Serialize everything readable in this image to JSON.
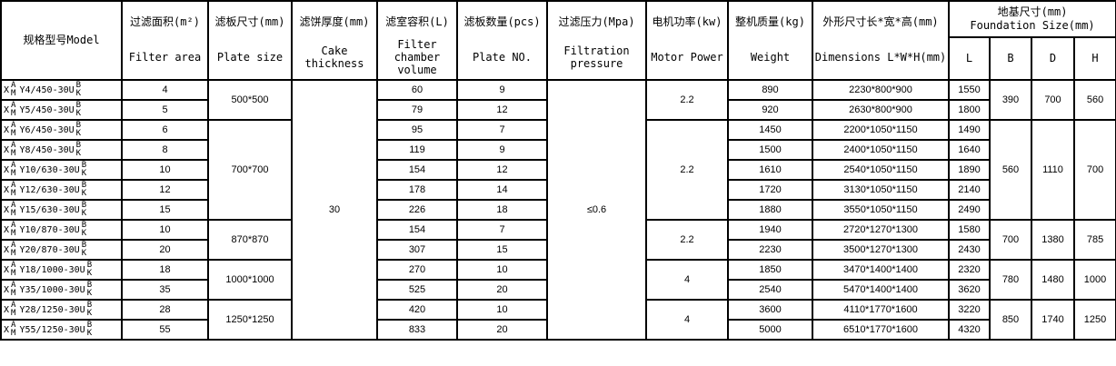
{
  "header": {
    "model": "规格型号Model",
    "filter_area": {
      "cn": "过滤面积(m²)",
      "en": "Filter area"
    },
    "plate_size": {
      "cn": "滤板尺寸(mm)",
      "en": "Plate size"
    },
    "cake_thickness": {
      "cn": "滤饼厚度(mm)",
      "en": "Cake thickness"
    },
    "chamber_volume": {
      "cn": "滤室容积(L)",
      "en": "Filter chamber volume"
    },
    "plate_no": {
      "cn": "滤板数量(pcs)",
      "en": "Plate NO."
    },
    "pressure": {
      "cn": "过滤压力(Mpa)",
      "en": "Filtration pressure"
    },
    "motor": {
      "cn": "电机功率(kw)",
      "en": "Motor Power"
    },
    "weight": {
      "cn": "整机质量(kg)",
      "en": "Weight"
    },
    "dimensions": {
      "cn": "外形尺寸长*宽*高(mm)",
      "en": "Dimensions L*W*H(mm)"
    },
    "foundation": {
      "cn": "地基尺寸(mm)",
      "en": "Foundation Size(mm)",
      "L": "L",
      "B": "B",
      "D": "D",
      "H": "H"
    }
  },
  "model_parts": {
    "prefix": "X",
    "top1": "A",
    "bot1": "M",
    "top2": "B",
    "bot2": "K"
  },
  "cake_thickness": "30",
  "pressure": "≤0.6",
  "groups": [
    {
      "plate_size": "500*500",
      "motor": "2.2",
      "B": "390",
      "D": "700",
      "H": "560",
      "rows": [
        {
          "model": "Y4/450-30U",
          "area": "4",
          "volume": "60",
          "plates": "9",
          "weight": "890",
          "dims": "2230*800*900",
          "L": "1550"
        },
        {
          "model": "Y5/450-30U",
          "area": "5",
          "volume": "79",
          "plates": "12",
          "weight": "920",
          "dims": "2630*800*900",
          "L": "1800"
        }
      ]
    },
    {
      "plate_size": "700*700",
      "motor": "2.2",
      "B": "560",
      "D": "1110",
      "H": "700",
      "rows": [
        {
          "model": "Y6/450-30U",
          "area": "6",
          "volume": "95",
          "plates": "7",
          "weight": "1450",
          "dims": "2200*1050*1150",
          "L": "1490"
        },
        {
          "model": "Y8/450-30U",
          "area": "8",
          "volume": "119",
          "plates": "9",
          "weight": "1500",
          "dims": "2400*1050*1150",
          "L": "1640"
        },
        {
          "model": "Y10/630-30U",
          "area": "10",
          "volume": "154",
          "plates": "12",
          "weight": "1610",
          "dims": "2540*1050*1150",
          "L": "1890"
        },
        {
          "model": "Y12/630-30U",
          "area": "12",
          "volume": "178",
          "plates": "14",
          "weight": "1720",
          "dims": "3130*1050*1150",
          "L": "2140"
        },
        {
          "model": "Y15/630-30U",
          "area": "15",
          "volume": "226",
          "plates": "18",
          "weight": "1880",
          "dims": "3550*1050*1150",
          "L": "2490"
        }
      ]
    },
    {
      "plate_size": "870*870",
      "motor": "2.2",
      "B": "700",
      "D": "1380",
      "H": "785",
      "rows": [
        {
          "model": "Y10/870-30U",
          "area": "10",
          "volume": "154",
          "plates": "7",
          "weight": "1940",
          "dims": "2720*1270*1300",
          "L": "1580"
        },
        {
          "model": "Y20/870-30U",
          "area": "20",
          "volume": "307",
          "plates": "15",
          "weight": "2230",
          "dims": "3500*1270*1300",
          "L": "2430"
        }
      ]
    },
    {
      "plate_size": "1000*1000",
      "motor": "4",
      "B": "780",
      "D": "1480",
      "H": "1000",
      "rows": [
        {
          "model": "Y18/1000-30U",
          "area": "18",
          "volume": "270",
          "plates": "10",
          "weight": "1850",
          "dims": "3470*1400*1400",
          "L": "2320"
        },
        {
          "model": "Y35/1000-30U",
          "area": "35",
          "volume": "525",
          "plates": "20",
          "weight": "2540",
          "dims": "5470*1400*1400",
          "L": "3620"
        }
      ]
    },
    {
      "plate_size": "1250*1250",
      "motor": "4",
      "B": "850",
      "D": "1740",
      "H": "1250",
      "rows": [
        {
          "model": "Y28/1250-30U",
          "area": "28",
          "volume": "420",
          "plates": "10",
          "weight": "3600",
          "dims": "4110*1770*1600",
          "L": "3220"
        },
        {
          "model": "Y55/1250-30U",
          "area": "55",
          "volume": "833",
          "plates": "20",
          "weight": "5000",
          "dims": "6510*1770*1600",
          "L": "4320"
        }
      ]
    }
  ]
}
